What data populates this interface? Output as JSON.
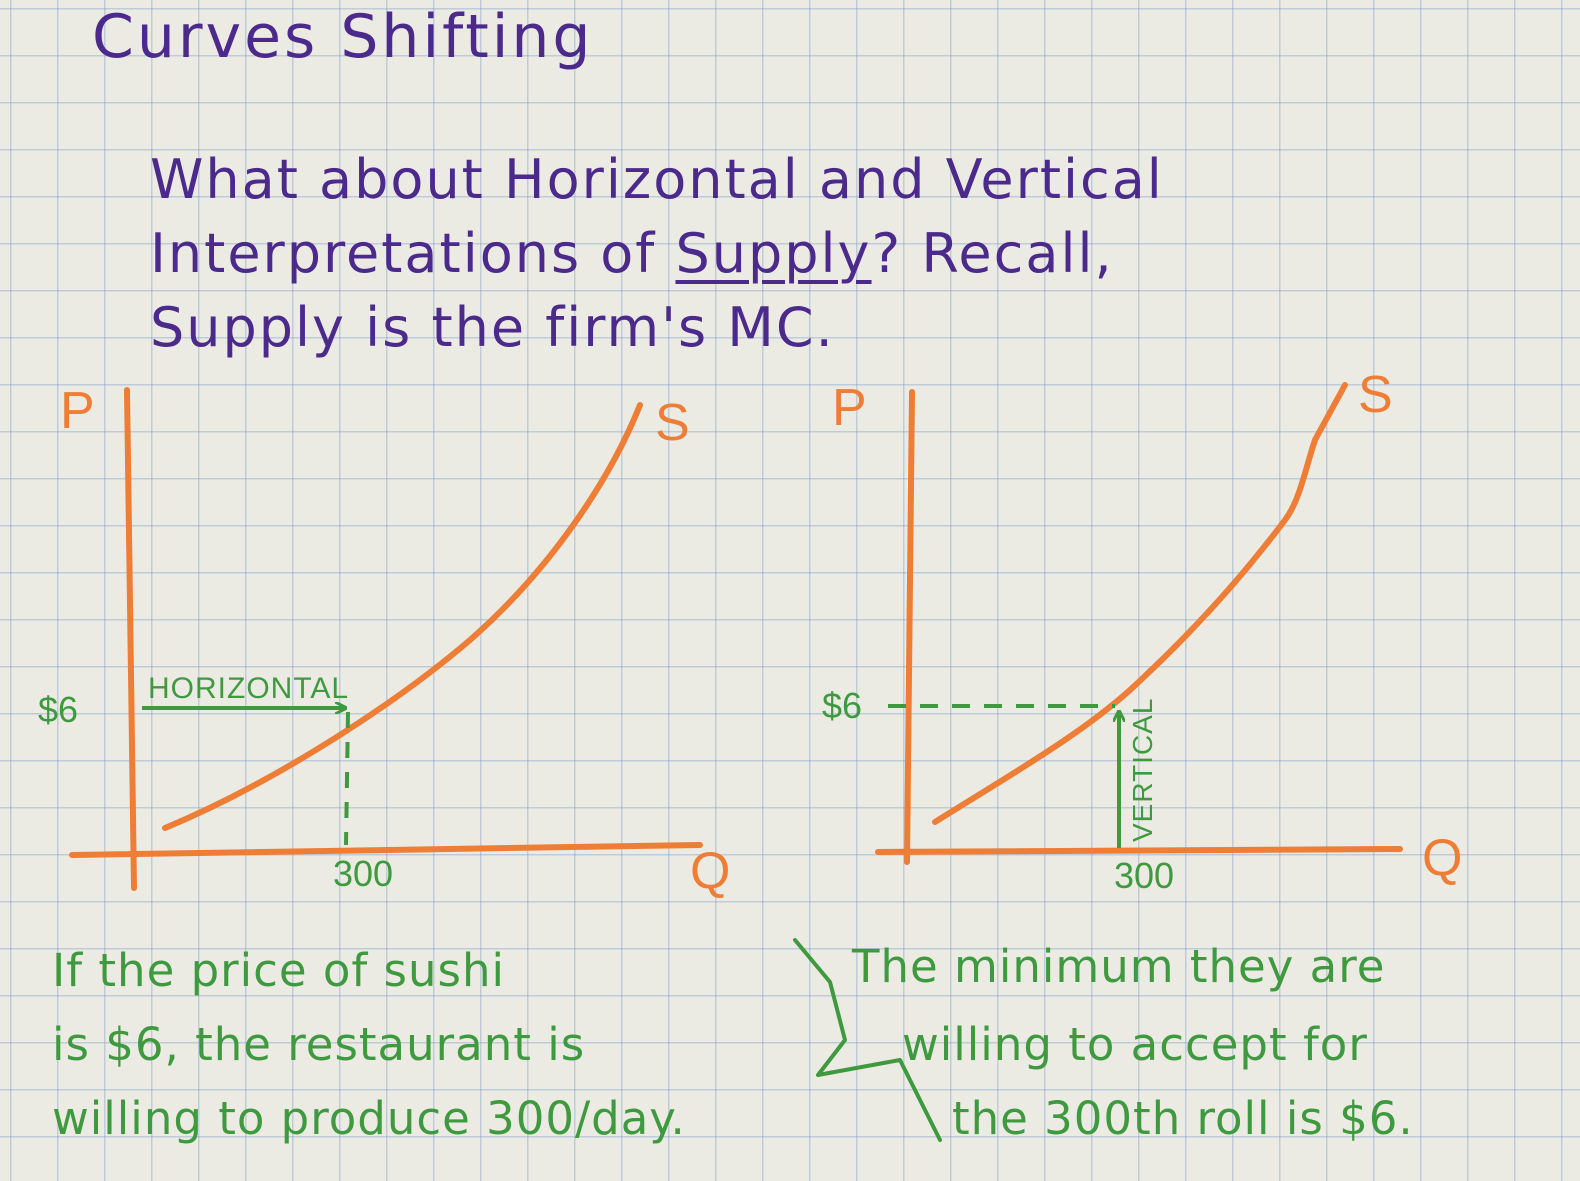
{
  "title": "Curves Shifting",
  "question": {
    "line1": "What about Horizontal and Vertical",
    "line2_a": "Interpretations of ",
    "line2_u": "Supply",
    "line2_b": "? Recall,",
    "line3": "Supply is the firm's MC."
  },
  "colors": {
    "ink": "#4b2a8c",
    "curve": "#ee7d35",
    "annotation": "#3f9a3f",
    "grid": "#8fa8d4"
  },
  "left_graph": {
    "y_axis_label": "P",
    "x_axis_label": "Q",
    "curve_label": "S",
    "price_label": "$6",
    "quantity_label": "300",
    "arrow_label": "HORIZONTAL"
  },
  "right_graph": {
    "y_axis_label": "P",
    "x_axis_label": "Q",
    "curve_label": "S",
    "price_label": "$6",
    "quantity_label": "300",
    "arrow_label": "VERTICAL"
  },
  "notes": {
    "left": [
      "If the price of sushi",
      "is $6, the restaurant is",
      "willing to produce 300/day."
    ],
    "right": [
      "The minimum they are",
      "willing to accept for",
      "the 300th roll is $6."
    ]
  }
}
